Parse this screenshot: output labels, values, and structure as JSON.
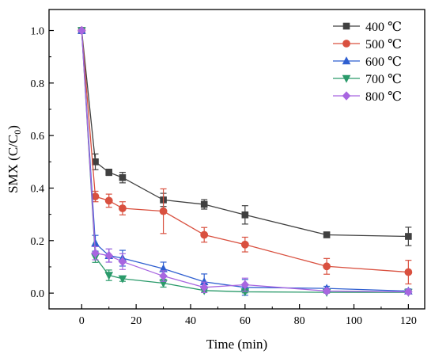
{
  "chart_data": {
    "type": "line",
    "xlabel": "Time (min)",
    "ylabel": "SMX (C/C",
    "ylabel_sub": "0",
    "ylabel_close": ")",
    "xlim": [
      -12,
      126
    ],
    "ylim": [
      -0.06,
      1.08
    ],
    "xticks": [
      0,
      20,
      40,
      60,
      80,
      100,
      120
    ],
    "xtick_labels": [
      "0",
      "20",
      "40",
      "60",
      "80",
      "100",
      "120"
    ],
    "yticks": [
      0.0,
      0.2,
      0.4,
      0.6,
      0.8,
      1.0
    ],
    "ytick_labels": [
      "0.0",
      "0.2",
      "0.4",
      "0.6",
      "0.8",
      "1.0"
    ],
    "grid": false,
    "legend_position": "top-right",
    "x": [
      0,
      5,
      10,
      15,
      30,
      45,
      60,
      90,
      120
    ],
    "series": [
      {
        "name": "400 ℃",
        "color": "#404040",
        "marker": "square",
        "values": [
          1.0,
          0.5,
          0.46,
          0.44,
          0.355,
          0.338,
          0.298,
          0.222,
          0.216
        ],
        "errors": [
          0,
          0.03,
          0.012,
          0.02,
          0.025,
          0.018,
          0.035,
          0.01,
          0.035
        ]
      },
      {
        "name": "500 ℃",
        "color": "#d9503f",
        "marker": "circle",
        "values": [
          1.0,
          0.368,
          0.352,
          0.323,
          0.312,
          0.222,
          0.185,
          0.102,
          0.08
        ],
        "errors": [
          0,
          0.02,
          0.025,
          0.025,
          0.085,
          0.028,
          0.028,
          0.03,
          0.045
        ]
      },
      {
        "name": "600 ℃",
        "color": "#2f5fd0",
        "marker": "triangle-up",
        "values": [
          1.0,
          0.19,
          0.143,
          0.133,
          0.093,
          0.043,
          0.022,
          0.018,
          0.008
        ],
        "errors": [
          0,
          0.03,
          0.025,
          0.03,
          0.025,
          0.03,
          0.03,
          0.008,
          0.008
        ]
      },
      {
        "name": "700 ℃",
        "color": "#2a9a6a",
        "marker": "triangle-down",
        "values": [
          1.0,
          0.137,
          0.068,
          0.055,
          0.038,
          0.01,
          0.005,
          0.003,
          0.003
        ],
        "errors": [
          0,
          0.02,
          0.02,
          0.01,
          0.015,
          0.005,
          0.004,
          0.003,
          0.003
        ]
      },
      {
        "name": "800 ℃",
        "color": "#a866e0",
        "marker": "diamond",
        "values": [
          1.0,
          0.152,
          0.143,
          0.12,
          0.065,
          0.022,
          0.032,
          0.008,
          0.005
        ],
        "errors": [
          0,
          0.025,
          0.025,
          0.03,
          0.02,
          0.02,
          0.025,
          0.008,
          0.008
        ]
      }
    ]
  }
}
